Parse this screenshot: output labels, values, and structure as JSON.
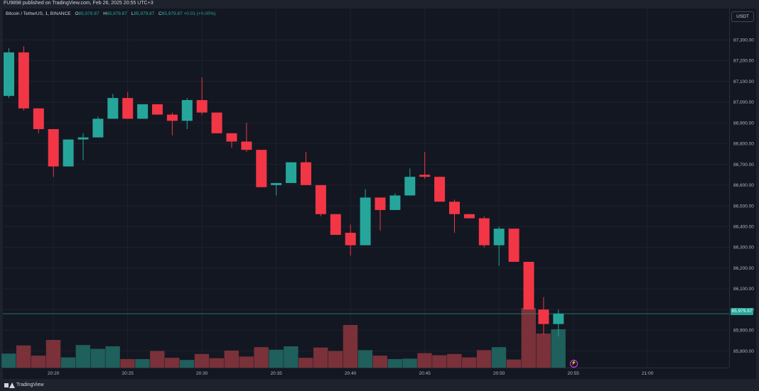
{
  "header": {
    "published_by": "FU9898 published on TradingView.com, Feb 26, 2025 20:55 UTC+3"
  },
  "legend": {
    "symbol": "Bitcoin / TetherUS, 1, BINANCE",
    "o_label": "O",
    "o_value": "85,979.87",
    "h_label": "H",
    "h_value": "85,979.87",
    "l_label": "L",
    "l_value": "85,979.87",
    "c_label": "C",
    "c_value": "85,979.87 +0.01 (+0.00%)"
  },
  "currency_button": "USDT",
  "last_price_label": "85,979.87",
  "footer": {
    "brand": "TradingView"
  },
  "colors": {
    "up": "#26a69a",
    "down": "#f23645",
    "vol_up": "#1f5f5c",
    "vol_down": "#7a3139",
    "background": "#131722"
  },
  "chart_data": {
    "type": "candlestick",
    "title": "Bitcoin / TetherUS, 1, BINANCE",
    "y_axis": {
      "range": [
        85720,
        87390
      ],
      "ticks": [
        85800,
        85900,
        86000,
        86100,
        86200,
        86300,
        86400,
        86500,
        86600,
        86700,
        86800,
        86900,
        87000,
        87100,
        87200,
        87300
      ],
      "tick_labels": [
        "85,800.00",
        "85,900.00",
        "86,000.00",
        "86,100.00",
        "86,200.00",
        "86,300.00",
        "86,400.00",
        "86,500.00",
        "86,600.00",
        "86,700.00",
        "86,800.00",
        "86,900.00",
        "87,000.00",
        "87,100.00",
        "87,200.00",
        "87,300.00"
      ],
      "position": "right"
    },
    "x_axis": {
      "tick_labels": [
        "20:20",
        "20:25",
        "20:30",
        "20:35",
        "20:40",
        "20:45",
        "20:50",
        "20:55",
        "21:00"
      ],
      "tick_index": [
        3,
        8,
        13,
        18,
        23,
        28,
        33,
        38,
        43
      ]
    },
    "last_price": 85979.87,
    "candles": [
      {
        "t": "20:17",
        "o": 87030,
        "h": 87260,
        "l": 87020,
        "c": 87240
      },
      {
        "t": "20:18",
        "o": 87240,
        "h": 87270,
        "l": 86960,
        "c": 86970
      },
      {
        "t": "20:19",
        "o": 86970,
        "h": 86970,
        "l": 86850,
        "c": 86870
      },
      {
        "t": "20:20",
        "o": 86870,
        "h": 86870,
        "l": 86640,
        "c": 86690
      },
      {
        "t": "20:21",
        "o": 86690,
        "h": 86820,
        "l": 86690,
        "c": 86820
      },
      {
        "t": "20:22",
        "o": 86820,
        "h": 86850,
        "l": 86720,
        "c": 86830
      },
      {
        "t": "20:23",
        "o": 86830,
        "h": 86930,
        "l": 86830,
        "c": 86920
      },
      {
        "t": "20:24",
        "o": 86920,
        "h": 87040,
        "l": 86920,
        "c": 87020
      },
      {
        "t": "20:25",
        "o": 87020,
        "h": 87050,
        "l": 86920,
        "c": 86920
      },
      {
        "t": "20:26",
        "o": 86920,
        "h": 86990,
        "l": 86920,
        "c": 86990
      },
      {
        "t": "20:27",
        "o": 86990,
        "h": 86990,
        "l": 86940,
        "c": 86940
      },
      {
        "t": "20:28",
        "o": 86940,
        "h": 86950,
        "l": 86840,
        "c": 86910
      },
      {
        "t": "20:29",
        "o": 86910,
        "h": 87020,
        "l": 86870,
        "c": 87010
      },
      {
        "t": "20:30",
        "o": 87010,
        "h": 87120,
        "l": 86940,
        "c": 86950
      },
      {
        "t": "20:31",
        "o": 86950,
        "h": 86950,
        "l": 86850,
        "c": 86850
      },
      {
        "t": "20:32",
        "o": 86850,
        "h": 86850,
        "l": 86780,
        "c": 86810
      },
      {
        "t": "20:33",
        "o": 86810,
        "h": 86900,
        "l": 86760,
        "c": 86770
      },
      {
        "t": "20:34",
        "o": 86770,
        "h": 86770,
        "l": 86590,
        "c": 86590
      },
      {
        "t": "20:35",
        "o": 86600,
        "h": 86610,
        "l": 86550,
        "c": 86610
      },
      {
        "t": "20:36",
        "o": 86610,
        "h": 86710,
        "l": 86610,
        "c": 86710
      },
      {
        "t": "20:37",
        "o": 86710,
        "h": 86760,
        "l": 86600,
        "c": 86600
      },
      {
        "t": "20:38",
        "o": 86600,
        "h": 86600,
        "l": 86450,
        "c": 86460
      },
      {
        "t": "20:39",
        "o": 86460,
        "h": 86460,
        "l": 86360,
        "c": 86360
      },
      {
        "t": "20:40",
        "o": 86370,
        "h": 86410,
        "l": 86260,
        "c": 86310
      },
      {
        "t": "20:41",
        "o": 86310,
        "h": 86580,
        "l": 86310,
        "c": 86540
      },
      {
        "t": "20:42",
        "o": 86540,
        "h": 86540,
        "l": 86380,
        "c": 86480
      },
      {
        "t": "20:43",
        "o": 86480,
        "h": 86560,
        "l": 86480,
        "c": 86550
      },
      {
        "t": "20:44",
        "o": 86550,
        "h": 86680,
        "l": 86550,
        "c": 86640
      },
      {
        "t": "20:45",
        "o": 86650,
        "h": 86760,
        "l": 86630,
        "c": 86640
      },
      {
        "t": "20:46",
        "o": 86640,
        "h": 86640,
        "l": 86520,
        "c": 86520
      },
      {
        "t": "20:47",
        "o": 86520,
        "h": 86530,
        "l": 86370,
        "c": 86460
      },
      {
        "t": "20:48",
        "o": 86460,
        "h": 86460,
        "l": 86440,
        "c": 86440
      },
      {
        "t": "20:49",
        "o": 86440,
        "h": 86450,
        "l": 86300,
        "c": 86310
      },
      {
        "t": "20:50",
        "o": 86310,
        "h": 86400,
        "l": 86210,
        "c": 86390
      },
      {
        "t": "20:51",
        "o": 86390,
        "h": 86390,
        "l": 86230,
        "c": 86230
      },
      {
        "t": "20:52",
        "o": 86230,
        "h": 86230,
        "l": 86000,
        "c": 86000
      },
      {
        "t": "20:53",
        "o": 86000,
        "h": 86060,
        "l": 85880,
        "c": 85930
      },
      {
        "t": "20:54",
        "o": 85930,
        "h": 86000,
        "l": 85870,
        "c": 85980
      }
    ],
    "volume_relative": [
      0.33,
      0.52,
      0.28,
      0.65,
      0.24,
      0.53,
      0.44,
      0.5,
      0.2,
      0.2,
      0.39,
      0.23,
      0.18,
      0.32,
      0.22,
      0.4,
      0.26,
      0.48,
      0.42,
      0.5,
      0.23,
      0.47,
      0.39,
      1.0,
      0.41,
      0.28,
      0.2,
      0.21,
      0.34,
      0.29,
      0.32,
      0.24,
      0.41,
      0.48,
      0.19,
      1.4,
      0.8,
      0.9
    ],
    "grid": true,
    "legend_position": "top-left"
  }
}
